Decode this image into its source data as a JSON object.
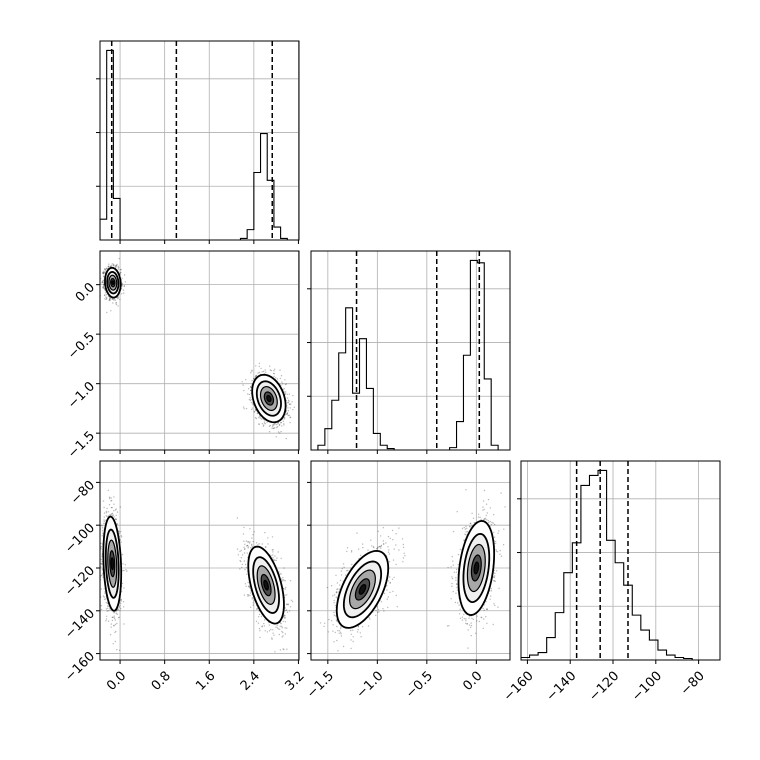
{
  "chart_data": {
    "type": "corner",
    "colors": {
      "ink": "#000000",
      "grid": "#b0b0b0",
      "scatter": "#333333",
      "background": "#ffffff"
    },
    "grid": true,
    "params": [
      {
        "range": [
          -0.36,
          3.21
        ],
        "ticks": [
          0.0,
          0.8,
          1.6,
          2.4,
          3.2
        ],
        "tick_labels": [
          "0.0",
          "0.8",
          "1.6",
          "2.4",
          "3.2"
        ]
      },
      {
        "range": [
          -1.67,
          0.34
        ],
        "ticks": [
          -1.5,
          -1.0,
          -0.5,
          0.0
        ],
        "tick_labels": [
          "−1.5",
          "−1.0",
          "−0.5",
          "0.0"
        ]
      },
      {
        "range": [
          -163,
          -70
        ],
        "ticks": [
          -160,
          -140,
          -120,
          -100,
          -80
        ],
        "tick_labels": [
          "−160",
          "−140",
          "−120",
          "−100",
          "−80"
        ]
      }
    ],
    "histograms": [
      {
        "param": 0,
        "bins": [
          -0.36,
          -0.24,
          -0.12,
          0.0,
          0.12,
          0.24,
          0.36,
          0.48,
          0.6,
          0.72,
          0.84,
          0.96,
          1.08,
          1.2,
          1.32,
          1.44,
          1.56,
          1.68,
          1.8,
          1.92,
          2.04,
          2.16,
          2.28,
          2.4,
          2.52,
          2.64,
          2.76,
          2.88,
          3.0,
          3.12
        ],
        "counts": [
          40,
          365,
          80,
          0,
          0,
          0,
          0,
          0,
          0,
          0,
          0,
          0,
          0,
          0,
          0,
          0,
          0,
          0,
          0,
          0,
          0,
          3,
          20,
          130,
          205,
          115,
          25,
          3,
          0
        ],
        "quantiles": [
          -0.15,
          1.01,
          2.73
        ]
      },
      {
        "param": 1,
        "bins": [
          -1.67,
          -1.6,
          -1.53,
          -1.46,
          -1.39,
          -1.32,
          -1.25,
          -1.18,
          -1.11,
          -1.04,
          -0.97,
          -0.9,
          -0.83,
          -0.76,
          -0.69,
          -0.62,
          -0.55,
          -0.48,
          -0.41,
          -0.34,
          -0.27,
          -0.2,
          -0.13,
          -0.06,
          0.01,
          0.08,
          0.15,
          0.22,
          0.29
        ],
        "counts": [
          0,
          10,
          45,
          105,
          205,
          300,
          120,
          235,
          130,
          35,
          10,
          3,
          0,
          0,
          0,
          0,
          0,
          0,
          0,
          0,
          5,
          60,
          200,
          400,
          395,
          150,
          10,
          0
        ],
        "quantiles": [
          -1.21,
          -0.4,
          0.03
        ]
      },
      {
        "param": 2,
        "bins": [
          -163,
          -159,
          -155,
          -151,
          -147,
          -143,
          -139,
          -135,
          -131,
          -127,
          -123,
          -119,
          -115,
          -111,
          -107,
          -103,
          -99,
          -95,
          -91,
          -87,
          -83,
          -79,
          -75,
          -71
        ],
        "counts": [
          5,
          10,
          15,
          45,
          95,
          175,
          235,
          350,
          370,
          380,
          240,
          195,
          150,
          90,
          60,
          40,
          20,
          10,
          5,
          3,
          0,
          0,
          0
        ],
        "quantiles": [
          -137,
          -126,
          -113
        ]
      }
    ],
    "pairs": [
      {
        "x": 0,
        "y": 1,
        "clusters": [
          {
            "mean_x": -0.13,
            "mean_y": 0.02,
            "sd_x": 0.07,
            "sd_y": 0.075,
            "rho": -0.1
          },
          {
            "mean_x": 2.67,
            "mean_y": -1.15,
            "sd_x": 0.15,
            "sd_y": 0.12,
            "rho": -0.3
          }
        ]
      },
      {
        "x": 0,
        "y": 2,
        "clusters": [
          {
            "mean_x": -0.14,
            "mean_y": -118,
            "sd_x": 0.08,
            "sd_y": 11,
            "rho": -0.2
          },
          {
            "mean_x": 2.62,
            "mean_y": -128,
            "sd_x": 0.16,
            "sd_y": 9,
            "rho": -0.5
          }
        ]
      },
      {
        "x": 1,
        "y": 2,
        "clusters": [
          {
            "mean_x": -1.15,
            "mean_y": -130,
            "sd_x": 0.13,
            "sd_y": 9,
            "rho": 0.55
          },
          {
            "mean_x": 0.0,
            "mean_y": -120,
            "sd_x": 0.09,
            "sd_y": 11,
            "rho": 0.3
          }
        ]
      }
    ]
  }
}
